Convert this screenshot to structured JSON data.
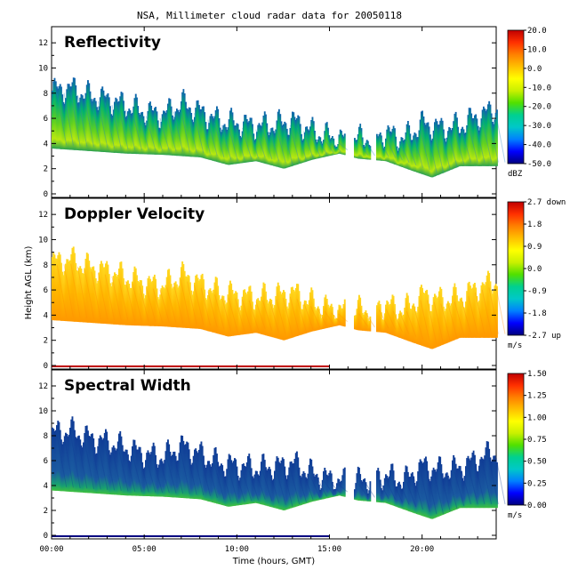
{
  "title": "NSA, Millimeter cloud radar data for 20050118",
  "xlabel": "Time (hours, GMT)",
  "ylabel": "Height AGL (km)",
  "chart_data": [
    {
      "type": "heatmap",
      "title": "Reflectivity",
      "xlabel": "Time (hours, GMT)",
      "ylabel": "Height AGL (km)",
      "xlim": [
        0,
        24
      ],
      "ylim": [
        0,
        13
      ],
      "x_ticks": [
        "00:00",
        "05:00",
        "10:00",
        "15:00",
        "20:00"
      ],
      "y_ticks": [
        0,
        2,
        4,
        6,
        8,
        10,
        12
      ],
      "colorbar": {
        "unit": "dBZ",
        "range": [
          -50,
          20
        ],
        "tick_labels": [
          "20.0",
          "10.0",
          "0.0",
          "-10.0",
          "-20.0",
          "-30.0",
          "-40.0",
          "-50.0"
        ]
      },
      "cloud_base_km": [
        [
          0,
          3.6
        ],
        [
          2,
          3.4
        ],
        [
          4,
          3.2
        ],
        [
          6,
          3.1
        ],
        [
          8,
          2.9
        ],
        [
          9.5,
          2.3
        ],
        [
          11,
          2.6
        ],
        [
          12.5,
          2.0
        ],
        [
          14,
          2.7
        ],
        [
          15.5,
          3.2
        ],
        [
          16.5,
          2.8
        ],
        [
          18,
          2.6
        ],
        [
          19.5,
          1.8
        ],
        [
          20.5,
          1.3
        ],
        [
          22,
          2.2
        ],
        [
          24,
          2.2
        ]
      ],
      "cloud_top_km": [
        [
          0,
          8.2
        ],
        [
          1,
          8.4
        ],
        [
          2,
          7.8
        ],
        [
          3,
          7.5
        ],
        [
          4,
          7.0
        ],
        [
          5,
          6.5
        ],
        [
          6,
          6.3
        ],
        [
          7,
          7.2
        ],
        [
          8,
          6.5
        ],
        [
          9,
          5.8
        ],
        [
          10,
          5.6
        ],
        [
          11,
          5.4
        ],
        [
          12,
          5.5
        ],
        [
          13,
          5.8
        ],
        [
          14,
          5.0
        ],
        [
          15,
          4.5
        ],
        [
          16,
          4.3
        ],
        [
          17,
          4.5
        ],
        [
          18,
          4.8
        ],
        [
          19,
          4.4
        ],
        [
          20,
          5.6
        ],
        [
          21,
          5.2
        ],
        [
          22,
          5.4
        ],
        [
          23,
          6.2
        ],
        [
          24,
          6.7
        ]
      ],
      "gaps_hours": [
        [
          15.8,
          16.3
        ],
        [
          17.2,
          17.5
        ]
      ]
    },
    {
      "type": "heatmap",
      "title": "Doppler Velocity",
      "xlabel": "Time (hours, GMT)",
      "ylabel": "Height AGL (km)",
      "xlim": [
        0,
        24
      ],
      "ylim": [
        0,
        13
      ],
      "x_ticks": [
        "00:00",
        "05:00",
        "10:00",
        "15:00",
        "20:00"
      ],
      "y_ticks": [
        0,
        2,
        4,
        6,
        8,
        10,
        12
      ],
      "colorbar": {
        "unit": "m/s",
        "range": [
          -2.7,
          2.7
        ],
        "tick_labels": [
          "2.7 down",
          "1.8",
          "0.9",
          "0.0",
          "-0.9",
          "-1.8",
          "-2.7 up"
        ]
      },
      "surface_echo_hours": [
        0,
        15
      ]
    },
    {
      "type": "heatmap",
      "title": "Spectral Width",
      "xlabel": "Time (hours, GMT)",
      "ylabel": "Height AGL (km)",
      "xlim": [
        0,
        24
      ],
      "ylim": [
        0,
        13
      ],
      "x_ticks": [
        "00:00",
        "05:00",
        "10:00",
        "15:00",
        "20:00"
      ],
      "y_ticks": [
        0,
        2,
        4,
        6,
        8,
        10,
        12
      ],
      "colorbar": {
        "unit": "m/s",
        "range": [
          0,
          1.5
        ],
        "tick_labels": [
          "1.50",
          "1.25",
          "1.00",
          "0.75",
          "0.50",
          "0.25",
          "0.00"
        ]
      },
      "surface_echo_hours": [
        0,
        15
      ]
    }
  ],
  "colors": {
    "colormap": [
      "#00007f",
      "#0000ff",
      "#0080ff",
      "#00c8c8",
      "#00d090",
      "#50e000",
      "#c8f000",
      "#ffff00",
      "#ffc000",
      "#ff8000",
      "#ff3000",
      "#c00000"
    ],
    "reflectivity_fill": "#3cc832",
    "doppler_fill": "#ffc800",
    "spectral_fill": "#143c96",
    "surface_echo": "#c00000"
  }
}
